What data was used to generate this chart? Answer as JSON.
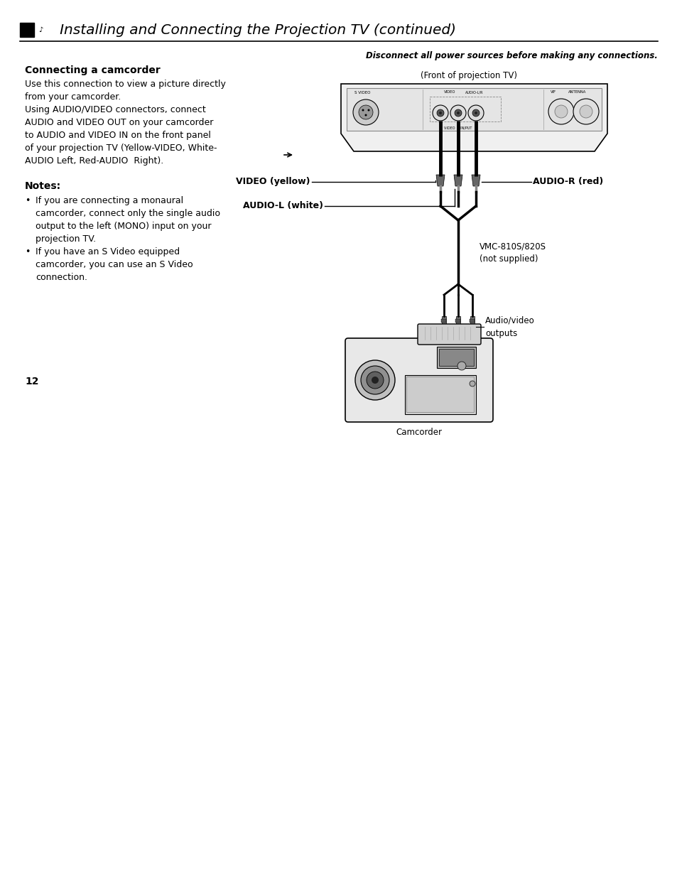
{
  "bg_color": "#ffffff",
  "title_text": "   Installing and Connecting the Projection TV (continued)",
  "disconnect_text": "Disconnect all power sources before making any connections.",
  "section_title": "Connecting a camcorder",
  "para1": "Use this connection to view a picture directly\nfrom your camcorder.",
  "para2": "Using AUDIO/VIDEO connectors, connect\nAUDIO and VIDEO OUT on your camcorder\nto AUDIO and VIDEO IN on the front panel\nof your projection TV (Yellow-VIDEO, White-\nAUDIO Left, Red-AUDIO  Right).",
  "notes_title": "Notes:",
  "note1": "If you are connecting a monaural\ncamcorder, connect only the single audio\noutput to the left (MONO) input on your\nprojection TV.",
  "note2": "If you have an S Video equipped\ncamcorder, you can use an S Video\nconnection.",
  "front_label": "(Front of projection TV)",
  "video_label": "VIDEO (yellow)",
  "audio_r_label": "AUDIO-R (red)",
  "audio_l_label": "AUDIO-L (white)",
  "vmc_label": "VMC-810S/820S\n(not supplied)",
  "audio_video_label": "Audio/video\noutputs",
  "camcorder_label": "Camcorder",
  "page_number": "12",
  "tv_svideo_label": "S VIDEO",
  "tv_video_label": "VIDEO",
  "tv_audiolr_label": "AUDIO-L/R",
  "tv_vif_label": "VIF",
  "tv_antenna_label": "ANTENNA",
  "tv_videoin_label": "VIDEO  2 IN/PUT"
}
